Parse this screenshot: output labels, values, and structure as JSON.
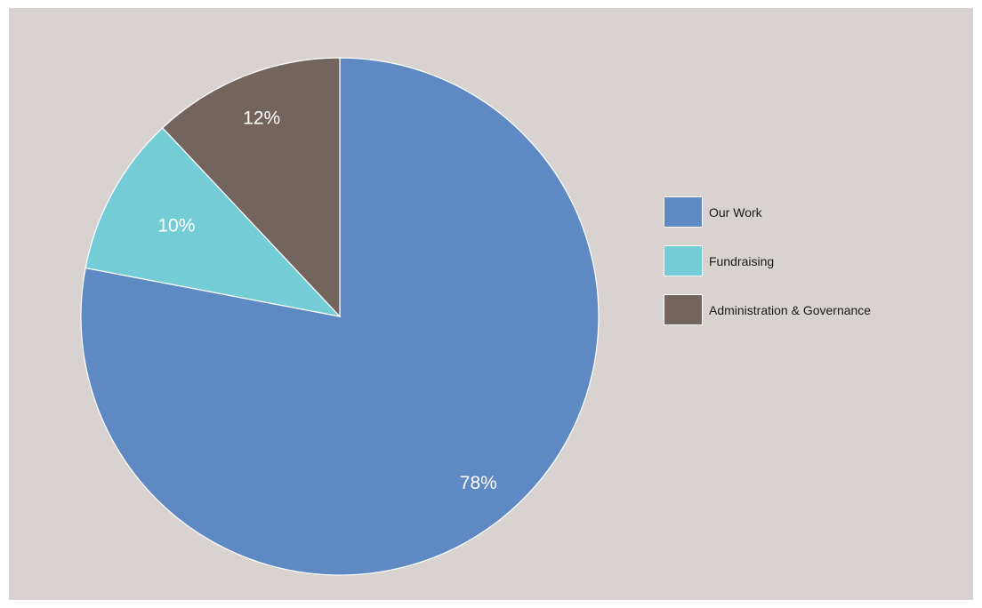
{
  "chart_data": {
    "type": "pie",
    "title": "",
    "categories": [
      "Our Work",
      "Fundraising",
      "Administration & Governance"
    ],
    "values": [
      78,
      10,
      12
    ],
    "labels": [
      "78%",
      "10%",
      "12%"
    ],
    "colors": [
      "#5f89c3",
      "#73ccd6",
      "#73655d"
    ],
    "legend_position": "right"
  },
  "legend": {
    "items": [
      {
        "label": "Our Work",
        "color": "#5f89c3"
      },
      {
        "label": "Fundraising",
        "color": "#73ccd6"
      },
      {
        "label": "Administration & Governance",
        "color": "#73655d"
      }
    ]
  }
}
